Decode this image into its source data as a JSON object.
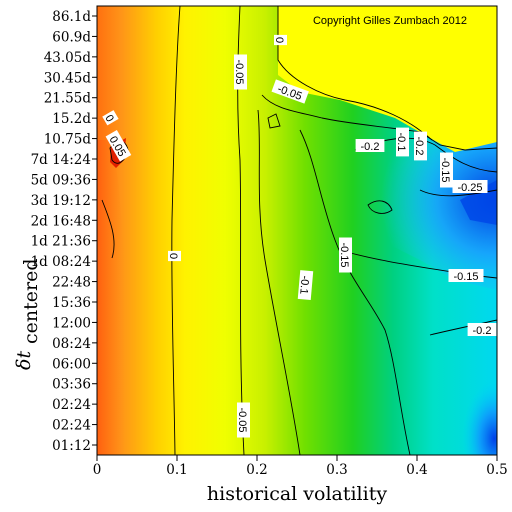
{
  "chart_data": {
    "type": "heatmap",
    "subtype": "filled contour plot",
    "copyright": "Copyright Gilles Zumbach 2012",
    "xlabel": "historical volatility",
    "ylabel": {
      "main": "δt",
      "subscript": "centered"
    },
    "xlim": [
      0,
      0.5
    ],
    "x_ticks": [
      "0",
      "0.1",
      "0.2",
      "0.3",
      "0.4",
      "0.5"
    ],
    "y_ticks": [
      "01:12",
      "02:24",
      "02:24",
      "03:36",
      "06:00",
      "08:24",
      "12:00",
      "15:36",
      "22:48",
      "1d 08:24",
      "1d 21:36",
      "2d 16:48",
      "3d 19:12",
      "5d 09:36",
      "7d 14:24",
      "10.75d",
      "15.2d",
      "21.55d",
      "30.45d",
      "43.05d",
      "60.9d",
      "86.1d"
    ],
    "colorscale": {
      "high": "#d00000",
      "upper": "#ffa020",
      "zero": "#ffff00",
      "mid": "#00cc20",
      "lower": "#00ffff",
      "low": "#0040f0"
    },
    "contour_labels": [
      "0",
      "0.05",
      "0",
      "0",
      "-0.05",
      "-0.05",
      "-0.05",
      "-0.1",
      "-0.1",
      "-0.15",
      "-0.15",
      "-0.15",
      "-0.2",
      "-0.2",
      "-0.25",
      "-0.2"
    ],
    "no_data_region": "upper-right, x > 0.27 for δt ≥ 21.55d",
    "grid": false,
    "legend": "none"
  }
}
